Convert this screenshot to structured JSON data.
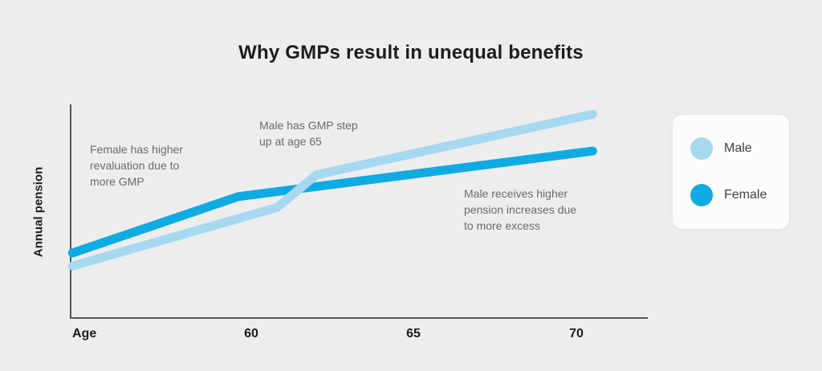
{
  "title": "Why GMPs result in unequal benefits",
  "y_axis_label": "Annual pension",
  "x_axis_label": "Age",
  "annotations": {
    "female_revaluation": "Female has higher\nrevaluation due to\nmore GMP",
    "male_step_up": "Male has GMP step\nup at age 65",
    "male_excess": "Male receives higher\npension increases due\nto more excess"
  },
  "legend": {
    "items": [
      {
        "label": "Male",
        "color": "#A6D8F0"
      },
      {
        "label": "Female",
        "color": "#10ABE2"
      }
    ]
  },
  "colors": {
    "background": "#EDEDEE",
    "axis": "#55565A",
    "title_text": "#1D1D1D",
    "annotation_text": "#6B6B6D",
    "male_line": "#A6D8F0",
    "female_line": "#10ABE2",
    "legend_background": "#FCFCFC"
  },
  "chart_data": {
    "type": "line",
    "title": "Why GMPs result in unequal benefits",
    "xlabel": "Age",
    "ylabel": "Annual pension",
    "x_ticks": [
      60,
      65,
      70
    ],
    "x_range": [
      54.5,
      72
    ],
    "y_range": [
      0,
      100
    ],
    "grid": false,
    "legend_position": "right",
    "series": [
      {
        "name": "Male",
        "color": "#A6D8F0",
        "x": [
          54.5,
          60.8,
          62.0,
          70.5
        ],
        "y": [
          24,
          51,
          66,
          94
        ]
      },
      {
        "name": "Female",
        "color": "#10ABE2",
        "x": [
          54.5,
          59.6,
          70.5
        ],
        "y": [
          30,
          56,
          77
        ]
      }
    ],
    "annotations": [
      {
        "text": "Female has higher revaluation due to more GMP",
        "x": 55.0,
        "y": 72
      },
      {
        "text": "Male has GMP step up at age 65",
        "x": 60.3,
        "y": 88
      },
      {
        "text": "Male receives higher pension increases due to more excess",
        "x": 66.5,
        "y": 52
      }
    ]
  }
}
